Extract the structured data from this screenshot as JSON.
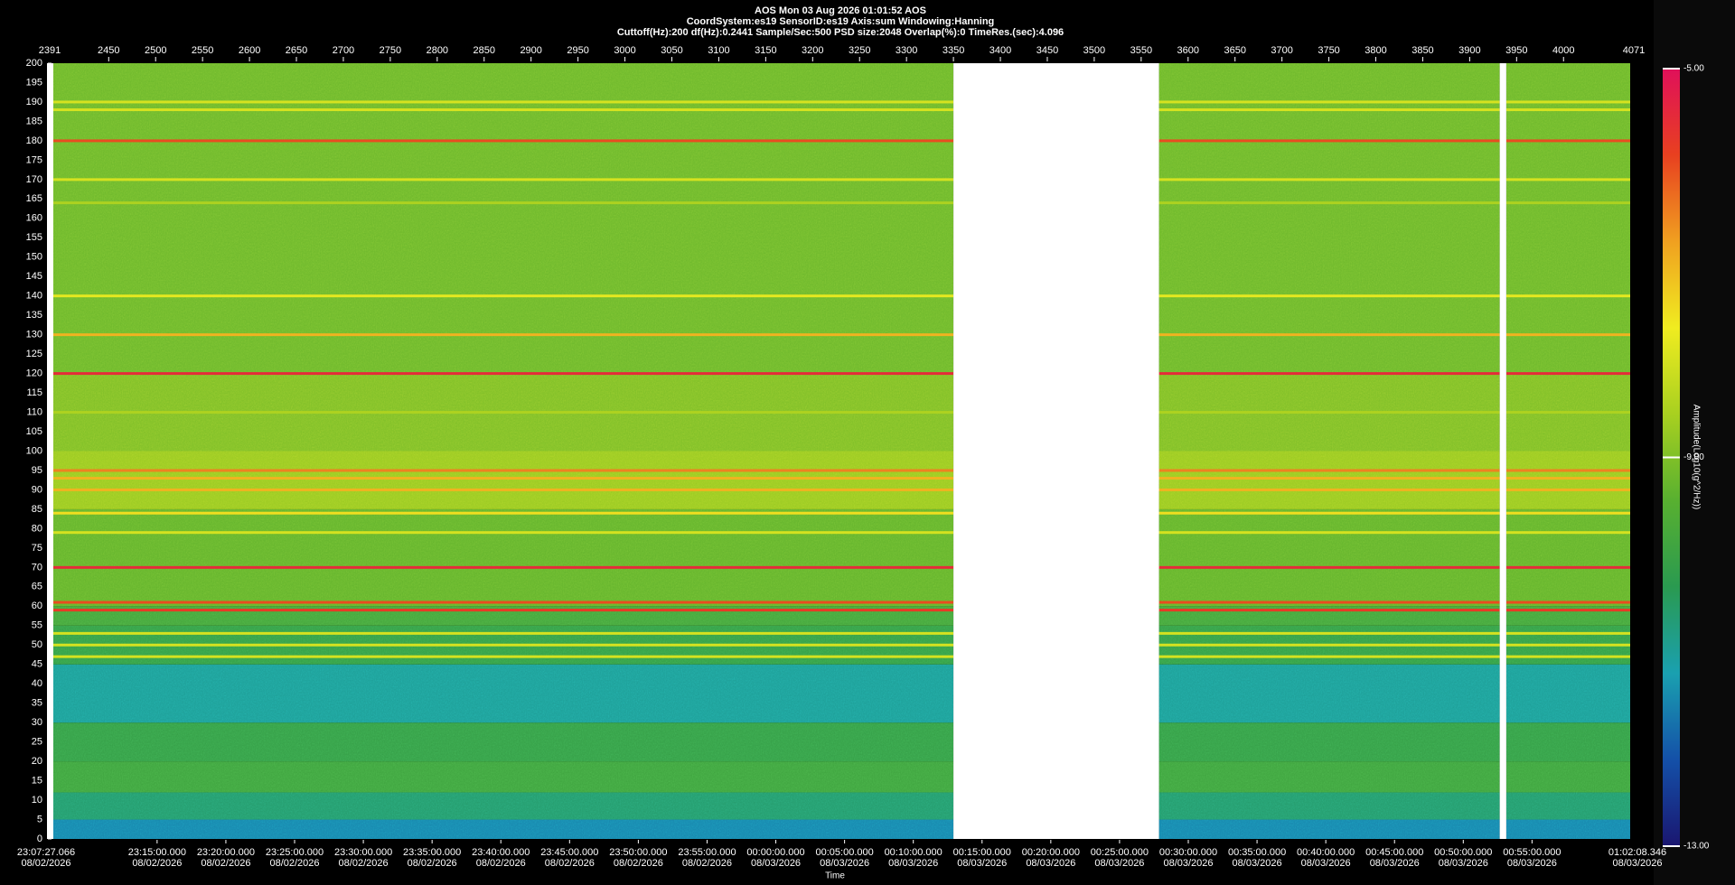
{
  "chart_data": {
    "type": "spectrogram",
    "title": [
      "AOS  Mon 03 Aug 2026 01:01:52  AOS",
      "CoordSystem:es19   SensorID:es19    Axis:sum    Windowing:Hanning",
      "Cuttoff(Hz):200      df(Hz):0.2441       Sample/Sec:500       PSD size:2048       Overlap(%):0       TimeRes.(sec):4.096"
    ],
    "xlim": [
      2391,
      4071
    ],
    "xticks": [
      2450,
      2500,
      2550,
      2600,
      2650,
      2700,
      2750,
      2800,
      2850,
      2900,
      2950,
      3000,
      3050,
      3100,
      3150,
      3200,
      3250,
      3300,
      3350,
      3400,
      3450,
      3500,
      3550,
      3600,
      3650,
      3700,
      3750,
      3800,
      3850,
      3900,
      3950,
      4000
    ],
    "ylim": [
      0,
      200
    ],
    "yticks": [
      0,
      5,
      10,
      15,
      20,
      25,
      30,
      35,
      40,
      45,
      50,
      55,
      60,
      65,
      70,
      75,
      80,
      85,
      90,
      95,
      100,
      105,
      110,
      115,
      120,
      125,
      130,
      135,
      140,
      145,
      150,
      155,
      160,
      165,
      170,
      175,
      180,
      185,
      190,
      195,
      200
    ],
    "x2label": "Time",
    "x2lim": [
      {
        "time": "23:07:27.066",
        "date": "08/02/2026"
      },
      {
        "time": "01:02:08.346",
        "date": "08/03/2026"
      }
    ],
    "x2ticks": [
      {
        "time": "23:15:00.000",
        "date": "08/02/2026"
      },
      {
        "time": "23:20:00.000",
        "date": "08/02/2026"
      },
      {
        "time": "23:25:00.000",
        "date": "08/02/2026"
      },
      {
        "time": "23:30:00.000",
        "date": "08/02/2026"
      },
      {
        "time": "23:35:00.000",
        "date": "08/02/2026"
      },
      {
        "time": "23:40:00.000",
        "date": "08/02/2026"
      },
      {
        "time": "23:45:00.000",
        "date": "08/02/2026"
      },
      {
        "time": "23:50:00.000",
        "date": "08/02/2026"
      },
      {
        "time": "23:55:00.000",
        "date": "08/02/2026"
      },
      {
        "time": "00:00:00.000",
        "date": "08/03/2026"
      },
      {
        "time": "00:05:00.000",
        "date": "08/03/2026"
      },
      {
        "time": "00:10:00.000",
        "date": "08/03/2026"
      },
      {
        "time": "00:15:00.000",
        "date": "08/03/2026"
      },
      {
        "time": "00:20:00.000",
        "date": "08/03/2026"
      },
      {
        "time": "00:25:00.000",
        "date": "08/03/2026"
      },
      {
        "time": "00:30:00.000",
        "date": "08/03/2026"
      },
      {
        "time": "00:35:00.000",
        "date": "08/03/2026"
      },
      {
        "time": "00:40:00.000",
        "date": "08/03/2026"
      },
      {
        "time": "00:45:00.000",
        "date": "08/03/2026"
      },
      {
        "time": "00:50:00.000",
        "date": "08/03/2026"
      },
      {
        "time": "00:55:00.000",
        "date": "08/03/2026"
      }
    ],
    "gaps": [
      [
        3350,
        3569
      ],
      [
        3932,
        3939
      ]
    ],
    "bins": [
      0,
      5,
      12,
      20,
      30,
      45,
      55,
      60,
      85,
      100,
      120,
      200
    ],
    "amplitudes": [
      -11.5,
      -10.6,
      -9.9,
      -10.1,
      -11,
      -10.1,
      -9.8,
      -9.3,
      -8.7,
      -9,
      -9.2
    ],
    "lines": {
      "freq": [
        190,
        188,
        180,
        170,
        164,
        140,
        130,
        120,
        110,
        95,
        93,
        90,
        84,
        79,
        70,
        61,
        59,
        53,
        50,
        47
      ],
      "amplitude": [
        -8,
        -8,
        -6,
        -8,
        -8.5,
        -7.8,
        -7,
        -5.5,
        -8.5,
        -6.5,
        -7,
        -7,
        -7.5,
        -8,
        -5.5,
        -6,
        -5.8,
        -8,
        -8,
        -8
      ]
    },
    "colorbar": {
      "lim": [
        -13,
        -5
      ],
      "ticks": [
        {
          "value": -5,
          "label": "-5.00"
        },
        {
          "value": -9,
          "label": "-9.00"
        },
        {
          "value": -13,
          "label": "-13.00"
        }
      ],
      "label": "Amplitude(Log10(g^2/Hz))",
      "colors": [
        "#1a1670",
        "#1450a8",
        "#1aa0b0",
        "#2a9a50",
        "#58b030",
        "#a8d020",
        "#f0ec20",
        "#f0a020",
        "#e84020",
        "#e0105a"
      ]
    }
  }
}
